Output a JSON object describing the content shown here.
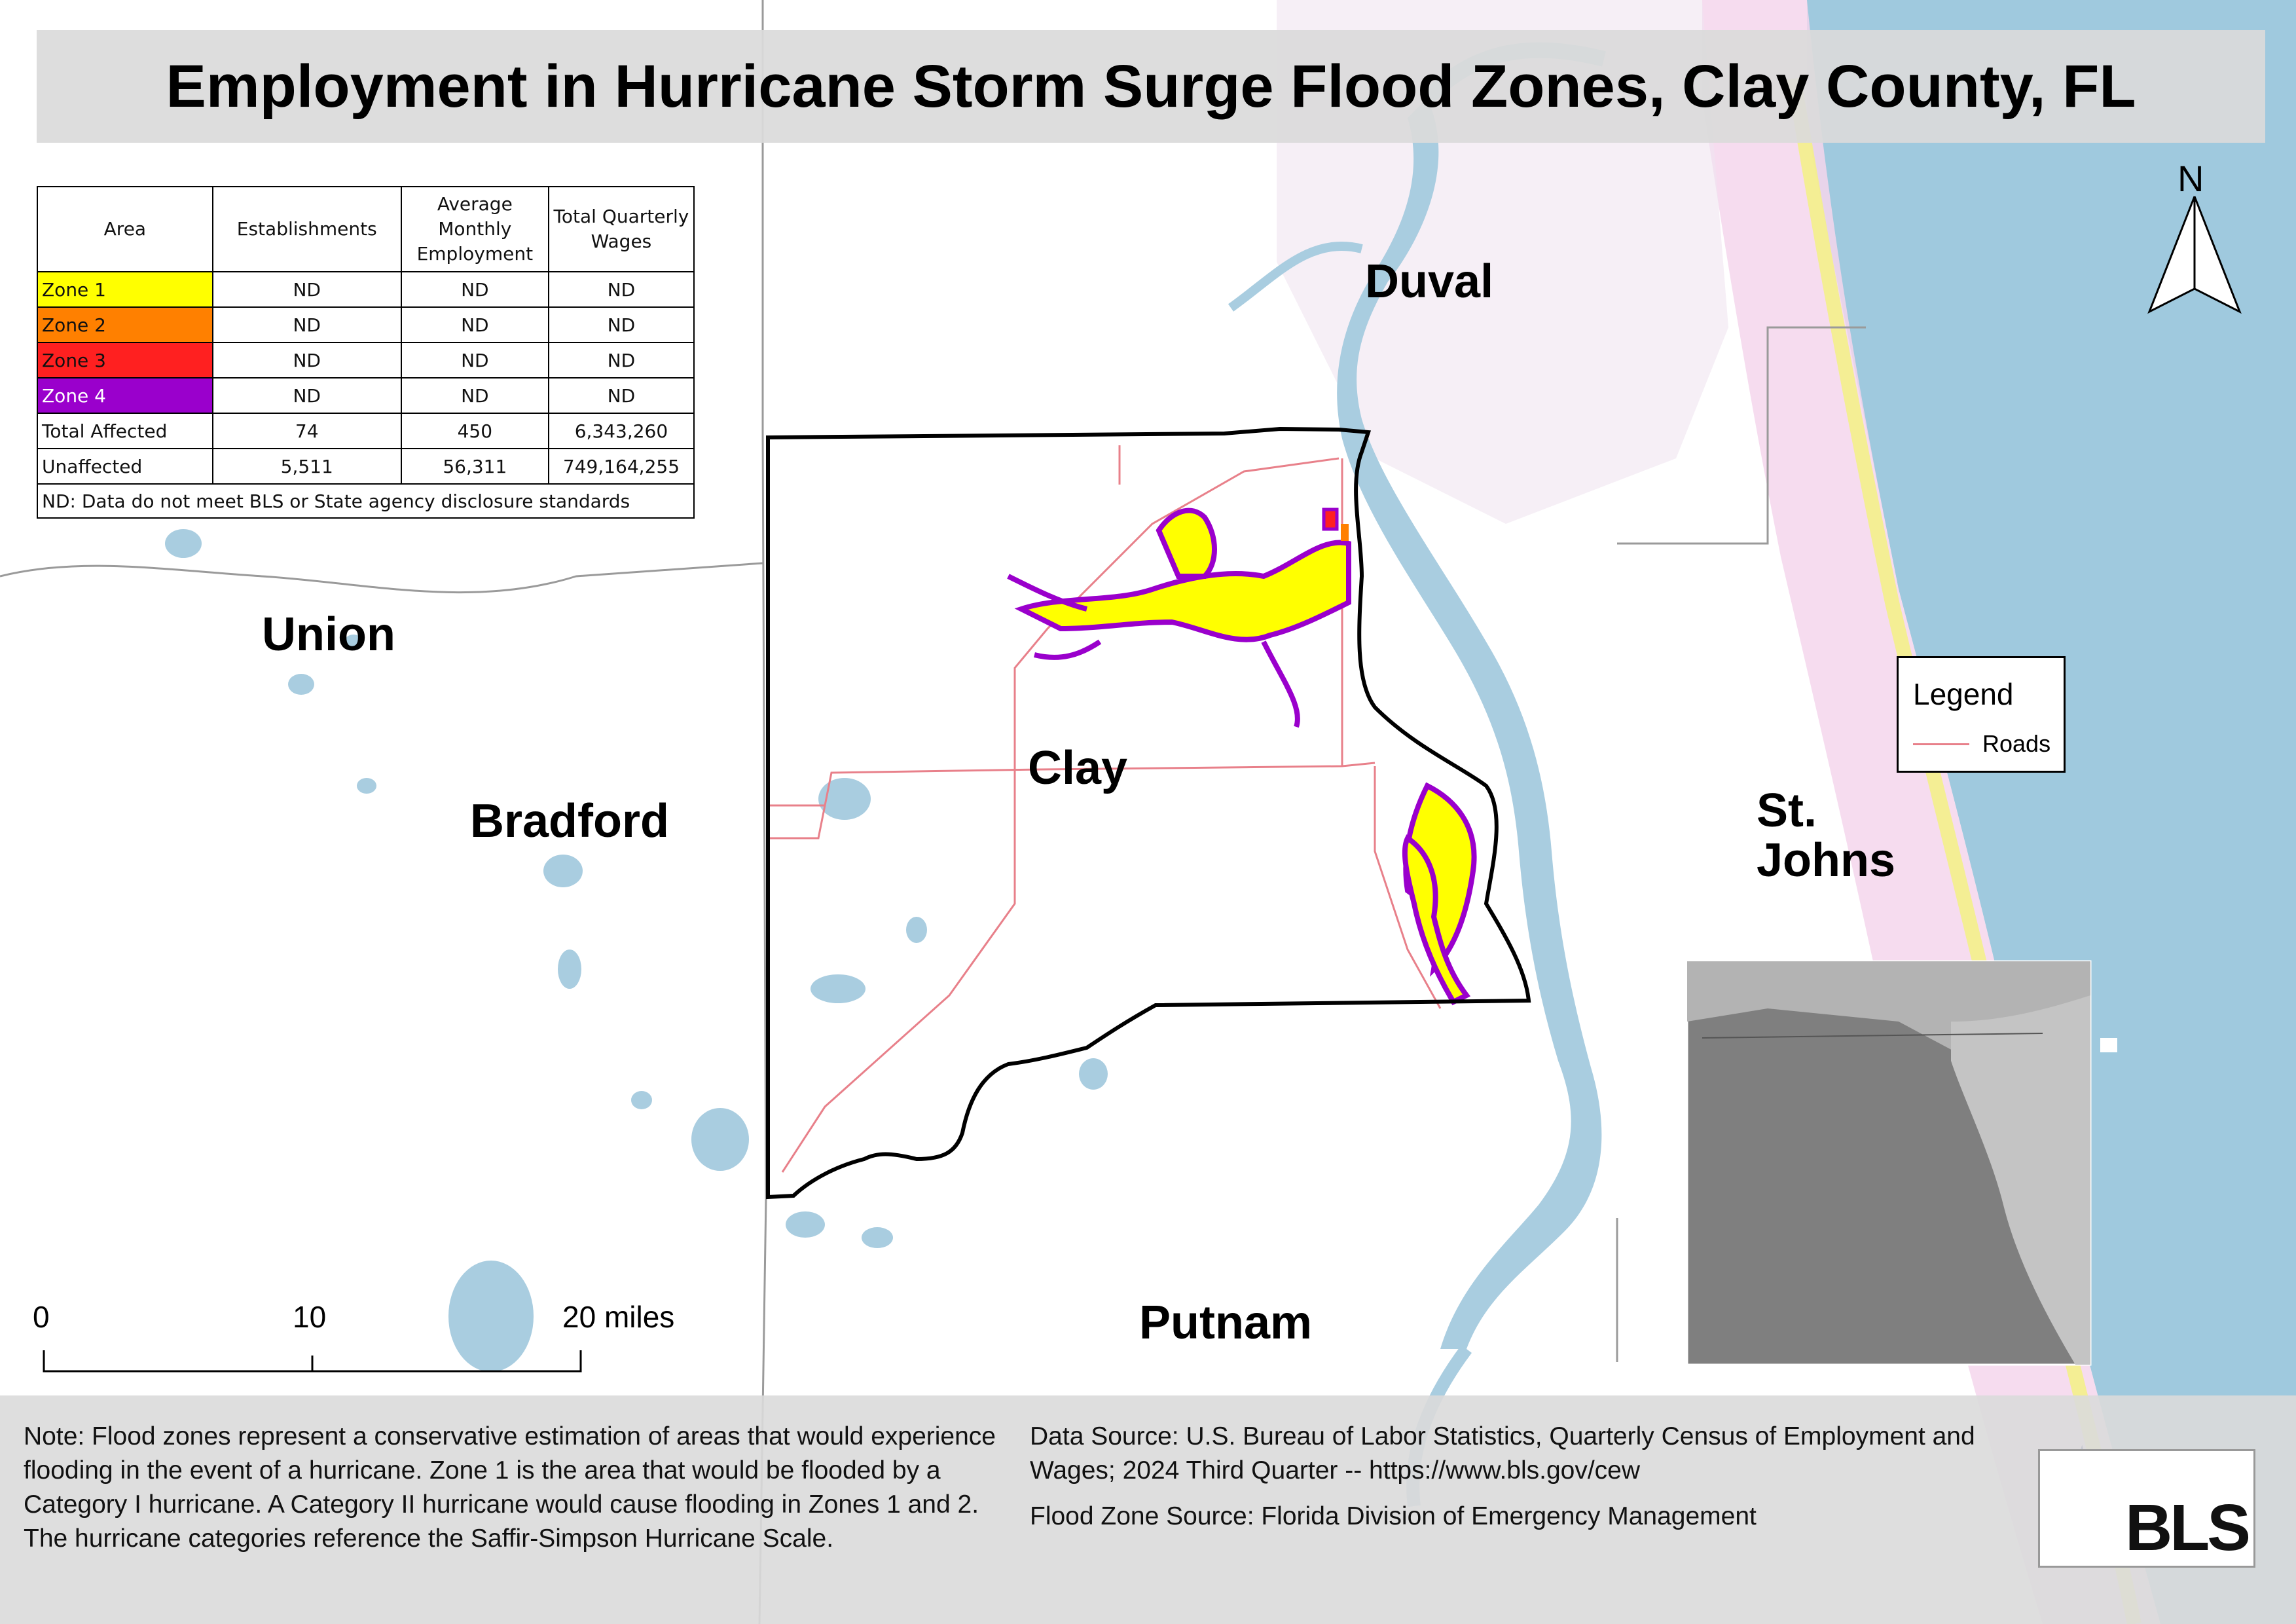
{
  "title": "Employment in Hurricane Storm Surge Flood Zones, Clay County, FL",
  "table": {
    "headers": [
      "Area",
      "Establishments",
      "Average Monthly Employment",
      "Total Quarterly Wages"
    ],
    "rows": [
      {
        "area": "Zone 1",
        "color": "#ffff00",
        "establishments": "ND",
        "employment": "ND",
        "wages": "ND"
      },
      {
        "area": "Zone 2",
        "color": "#ff8000",
        "establishments": "ND",
        "employment": "ND",
        "wages": "ND"
      },
      {
        "area": "Zone 3",
        "color": "#ff2020",
        "establishments": "ND",
        "employment": "ND",
        "wages": "ND"
      },
      {
        "area": "Zone 4",
        "color": "#9a00cc",
        "establishments": "ND",
        "employment": "ND",
        "wages": "ND"
      },
      {
        "area": "Total Affected",
        "color": "#ffffff",
        "establishments": "74",
        "employment": "450",
        "wages": "6,343,260"
      },
      {
        "area": "Unaffected",
        "color": "#ffffff",
        "establishments": "5,511",
        "employment": "56,311",
        "wages": "749,164,255"
      }
    ],
    "footnote": "ND: Data do not meet BLS or State agency disclosure standards"
  },
  "counties": {
    "duval": "Duval",
    "union": "Union",
    "clay": "Clay",
    "bradford": "Bradford",
    "st_johns_line1": "St.",
    "st_johns_line2": "Johns",
    "putnam": "Putnam"
  },
  "north_arrow": "N",
  "legend": {
    "title": "Legend",
    "roads_label": "Roads",
    "roads_color": "#e8808a"
  },
  "scale_bar": {
    "label_0": "0",
    "label_10": "10",
    "label_20": "20 miles"
  },
  "note": "Note: Flood zones represent a conservative estimation of areas that would experience flooding in the event of a hurricane. Zone 1 is the area that would be flooded by a Category I hurricane. A Category II hurricane would cause flooding in Zones 1 and 2. The hurricane categories reference the Saffir-Simpson Hurricane Scale.",
  "data_source": "Data Source: U.S. Bureau of Labor Statistics, Quarterly Census of Employment and Wages; 2024 Third Quarter -- https://www.bls.gov/cew",
  "flood_zone_source": "Flood Zone Source: Florida Division of Emergency Management",
  "logo_text": "BLS",
  "colors": {
    "water": "#a9cde0",
    "ocean": "#9fc9de",
    "roads": "#e8808a",
    "county_border": "#000000",
    "zone_1": "#ffff00",
    "zone_2": "#ff8000",
    "zone_3": "#ff2020",
    "zone_4": "#9a00cc"
  }
}
